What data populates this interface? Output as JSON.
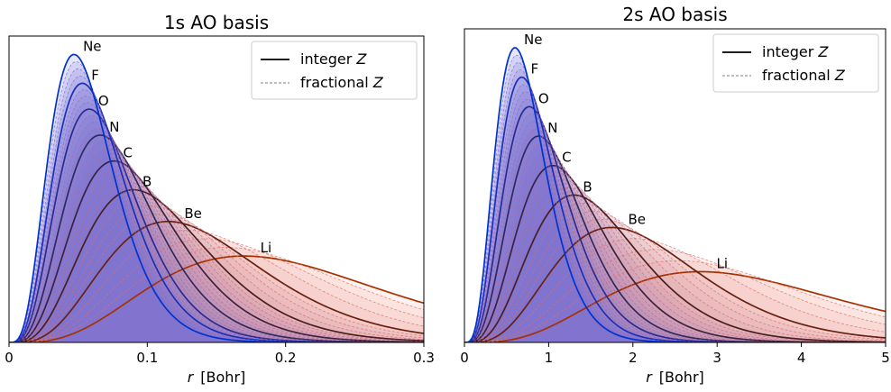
{
  "chart_data": [
    {
      "type": "line",
      "title": "1s AO basis",
      "xlabel_var": "r",
      "xlabel_unit": "[Bohr]",
      "xlim": [
        0,
        0.3
      ],
      "xticks": [
        "0",
        "0.1",
        "0.2",
        "0.3"
      ],
      "ylabel": "",
      "yticks": [],
      "legend": {
        "placement": "top-right",
        "entries": [
          {
            "text": "integer ",
            "var": "Z",
            "style": "solid"
          },
          {
            "text": "fractional ",
            "var": "Z",
            "style": "dashed"
          }
        ]
      },
      "element_labels": [
        "Ne",
        "F",
        "O",
        "N",
        "C",
        "B",
        "Be",
        "Li"
      ],
      "series": [
        {
          "name": "Ne",
          "peak_r": 0.047,
          "peak_height": 1.0,
          "color": "#0033cc"
        },
        {
          "name": "F",
          "peak_r": 0.053,
          "peak_height": 0.9,
          "color": "#1a2fb8"
        },
        {
          "name": "O",
          "peak_r": 0.058,
          "peak_height": 0.81,
          "color": "#2a2a90"
        },
        {
          "name": "N",
          "peak_r": 0.066,
          "peak_height": 0.72,
          "color": "#302860"
        },
        {
          "name": "C",
          "peak_r": 0.076,
          "peak_height": 0.63,
          "color": "#3a2240"
        },
        {
          "name": "B",
          "peak_r": 0.09,
          "peak_height": 0.53,
          "color": "#4a1e20"
        },
        {
          "name": "Be",
          "peak_r": 0.115,
          "peak_height": 0.42,
          "color": "#6a2010"
        },
        {
          "name": "Li",
          "peak_r": 0.17,
          "peak_height": 0.3,
          "color": "#a83000"
        }
      ],
      "colors": {
        "integer_start": "#0033cc",
        "integer_end": "#a83000",
        "fill_start": "#6a6adc",
        "fill_end": "#f7a89a"
      }
    },
    {
      "type": "line",
      "title": "2s AO basis",
      "xlabel_var": "r",
      "xlabel_unit": "[Bohr]",
      "xlim": [
        0,
        5
      ],
      "xticks": [
        "0",
        "1",
        "2",
        "3",
        "4",
        "5"
      ],
      "ylabel": "",
      "yticks": [],
      "legend": {
        "placement": "top-right",
        "entries": [
          {
            "text": "integer ",
            "var": "Z",
            "style": "solid"
          },
          {
            "text": "fractional ",
            "var": "Z",
            "style": "dashed"
          }
        ]
      },
      "element_labels": [
        "Ne",
        "F",
        "O",
        "N",
        "C",
        "B",
        "Be",
        "Li"
      ],
      "series": [
        {
          "name": "Ne",
          "peak_r": 0.6,
          "peak_height": 1.0,
          "color": "#0033cc"
        },
        {
          "name": "F",
          "peak_r": 0.68,
          "peak_height": 0.9,
          "color": "#1a2fb8"
        },
        {
          "name": "O",
          "peak_r": 0.77,
          "peak_height": 0.8,
          "color": "#2a2a90"
        },
        {
          "name": "N",
          "peak_r": 0.88,
          "peak_height": 0.7,
          "color": "#302860"
        },
        {
          "name": "C",
          "peak_r": 1.05,
          "peak_height": 0.6,
          "color": "#3a2240"
        },
        {
          "name": "B",
          "peak_r": 1.3,
          "peak_height": 0.5,
          "color": "#4a1e20"
        },
        {
          "name": "Be",
          "peak_r": 1.75,
          "peak_height": 0.39,
          "color": "#6a2010"
        },
        {
          "name": "Li",
          "peak_r": 2.8,
          "peak_height": 0.24,
          "color": "#a83000"
        }
      ],
      "colors": {
        "integer_start": "#0033cc",
        "integer_end": "#a83000",
        "fill_start": "#6a6adc",
        "fill_end": "#f7a89a"
      }
    }
  ]
}
